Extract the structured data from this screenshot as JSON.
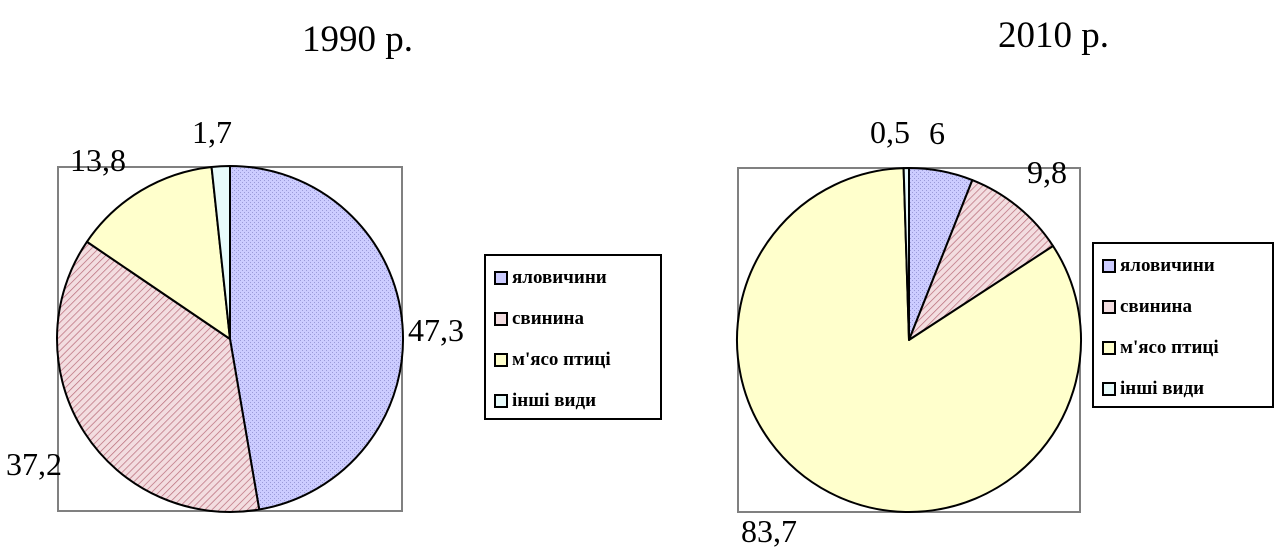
{
  "colors": {
    "beef": "#ccccff",
    "pork": "#f3dde0",
    "poultry": "#ffffcc",
    "other": "#e8fbfb",
    "outline": "#000000",
    "frame": "#808080"
  },
  "legend": {
    "items": [
      "яловичини",
      "свинина",
      "м'ясо птиці",
      "інші види"
    ]
  },
  "chart_data": [
    {
      "type": "pie",
      "title": "1990 р.",
      "categories": [
        "яловичини",
        "свинина",
        "м'ясо птиці",
        "інші види"
      ],
      "values": [
        47.3,
        37.2,
        13.8,
        1.7
      ],
      "labels": [
        "47,3",
        "37,2",
        "13,8",
        "1,7"
      ],
      "legend_position": "right"
    },
    {
      "type": "pie",
      "title": "2010 р.",
      "categories": [
        "яловичини",
        "свинина",
        "м'ясо птиці",
        "інші види"
      ],
      "values": [
        6,
        9.8,
        83.7,
        0.5
      ],
      "labels": [
        "6",
        "9,8",
        "83,7",
        "0,5"
      ],
      "legend_position": "right"
    }
  ]
}
